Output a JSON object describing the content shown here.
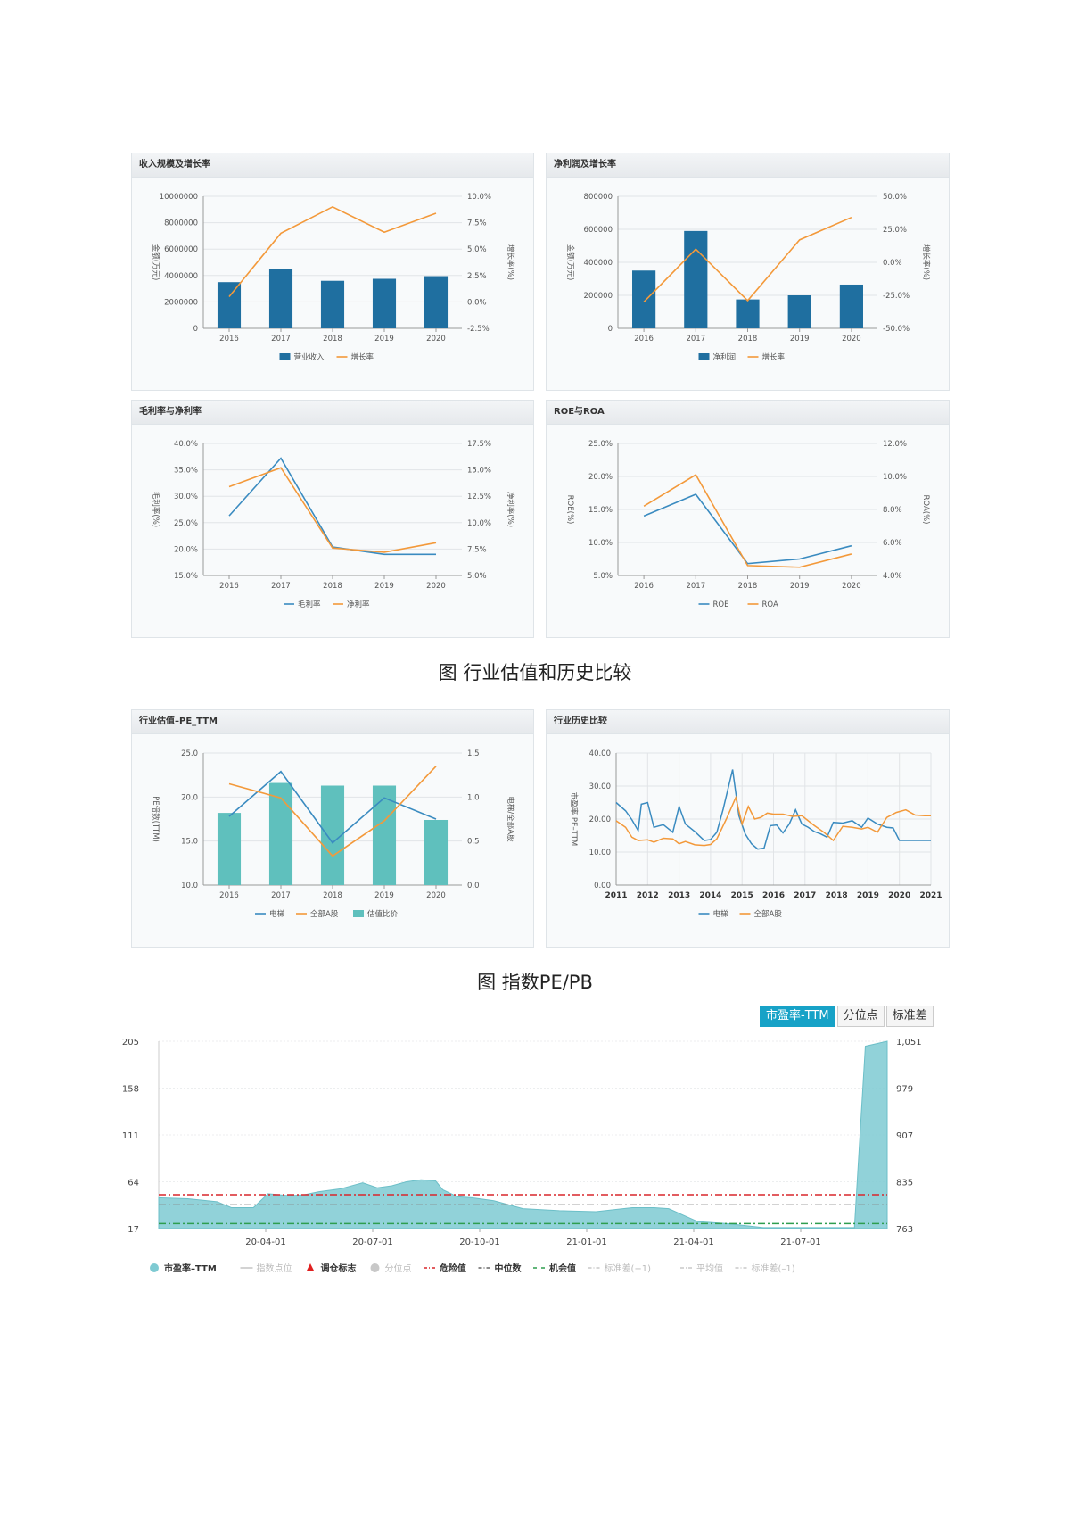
{
  "captions": {
    "industry_valuation": "图 行业估值和历史比较",
    "index_pe_pb": "图 指数PE/PB"
  },
  "pe_tabs": [
    "市盈率-TTM",
    "分位点",
    "标准差"
  ],
  "colors": {
    "bar": "#1f6fa0",
    "line_orange": "#f3993a",
    "line_blue": "#3a8bc0",
    "teal_bar": "#5fc0bd",
    "area": "#7ecad2"
  },
  "chart_data": [
    {
      "id": "revenue",
      "type": "bar+line",
      "title": "收入规模及增长率",
      "categories": [
        "2016",
        "2017",
        "2018",
        "2019",
        "2020"
      ],
      "left_axis": {
        "label": "金额(万元)",
        "ticks": [
          "10000000",
          "8000000",
          "6000000",
          "4000000",
          "2000000",
          "0"
        ],
        "min": 0,
        "max": 10000000
      },
      "right_axis": {
        "label": "增长率(%)",
        "ticks": [
          "10.0%",
          "7.5%",
          "5.0%",
          "2.5%",
          "0.0%",
          "-2.5%"
        ],
        "min": -2.5,
        "max": 10
      },
      "series": [
        {
          "name": "营业收入",
          "kind": "bar",
          "axis": "left",
          "values": [
            3500000,
            4500000,
            3600000,
            3750000,
            3950000
          ]
        },
        {
          "name": "增长率",
          "kind": "line",
          "axis": "right",
          "color": "orange",
          "values": [
            0.5,
            6.5,
            9.0,
            6.6,
            8.4
          ]
        }
      ]
    },
    {
      "id": "net_profit",
      "type": "bar+line",
      "title": "净利润及增长率",
      "categories": [
        "2016",
        "2017",
        "2018",
        "2019",
        "2020"
      ],
      "left_axis": {
        "label": "金额(万元)",
        "ticks": [
          "800000",
          "600000",
          "400000",
          "200000",
          "0"
        ],
        "min": 0,
        "max": 800000
      },
      "right_axis": {
        "label": "增长率(%)",
        "ticks": [
          "50.0%",
          "25.0%",
          "0.0%",
          "-25.0%",
          "-50.0%"
        ],
        "min": -50,
        "max": 50
      },
      "series": [
        {
          "name": "净利润",
          "kind": "bar",
          "axis": "left",
          "values": [
            350000,
            590000,
            175000,
            200000,
            265000
          ]
        },
        {
          "name": "增长率",
          "kind": "line",
          "axis": "right",
          "color": "orange",
          "values": [
            -30,
            10,
            -29,
            17,
            34
          ]
        }
      ]
    },
    {
      "id": "margin",
      "type": "line",
      "title": "毛利率与净利率",
      "categories": [
        "2016",
        "2017",
        "2018",
        "2019",
        "2020"
      ],
      "left_axis": {
        "label": "毛利率(%)",
        "ticks": [
          "40.0%",
          "35.0%",
          "30.0%",
          "25.0%",
          "20.0%",
          "15.0%"
        ],
        "min": 15,
        "max": 40
      },
      "right_axis": {
        "label": "净利率(%)",
        "ticks": [
          "17.5%",
          "15.0%",
          "12.5%",
          "10.0%",
          "7.5%",
          "5.0%"
        ],
        "min": 5,
        "max": 17.5
      },
      "series": [
        {
          "name": "毛利率",
          "kind": "line",
          "axis": "left",
          "color": "blue",
          "values": [
            26.3,
            37.2,
            20.4,
            19.0,
            19.0
          ]
        },
        {
          "name": "净利率",
          "kind": "line",
          "axis": "right",
          "color": "orange",
          "values": [
            13.4,
            15.2,
            7.6,
            7.2,
            8.1
          ]
        }
      ]
    },
    {
      "id": "roe_roa",
      "type": "line",
      "title": "ROE与ROA",
      "categories": [
        "2016",
        "2017",
        "2018",
        "2019",
        "2020"
      ],
      "left_axis": {
        "label": "ROE(%)",
        "ticks": [
          "25.0%",
          "20.0%",
          "15.0%",
          "10.0%",
          "5.0%"
        ],
        "min": 5,
        "max": 25
      },
      "right_axis": {
        "label": "ROA(%)",
        "ticks": [
          "12.0%",
          "10.0%",
          "8.0%",
          "6.0%",
          "4.0%"
        ],
        "min": 4,
        "max": 12
      },
      "series": [
        {
          "name": "ROE",
          "kind": "line",
          "axis": "left",
          "color": "blue",
          "values": [
            14,
            17.3,
            6.8,
            7.5,
            9.5
          ]
        },
        {
          "name": "ROA",
          "kind": "line",
          "axis": "right",
          "color": "orange",
          "values": [
            8.2,
            10.1,
            4.6,
            4.5,
            5.3
          ]
        }
      ]
    },
    {
      "id": "industry_pe",
      "type": "bar+line",
      "title": "行业估值–PE_TTM",
      "categories": [
        "2016",
        "2017",
        "2018",
        "2019",
        "2020"
      ],
      "left_axis": {
        "label": "PE倍数(TTM)",
        "ticks": [
          "25.0",
          "20.0",
          "15.0",
          "10.0"
        ],
        "min": 10,
        "max": 25
      },
      "right_axis": {
        "label": "电梯/全部A股",
        "ticks": [
          "1.5",
          "1.0",
          "0.5",
          "0.0"
        ],
        "min": 0,
        "max": 1.5
      },
      "series": [
        {
          "name": "电梯",
          "kind": "line",
          "axis": "left",
          "color": "blue",
          "values": [
            17.8,
            22.9,
            14.8,
            19.9,
            17.5
          ]
        },
        {
          "name": "全部A股",
          "kind": "line",
          "axis": "left",
          "color": "orange",
          "values": [
            21.5,
            19.9,
            13.3,
            17.3,
            23.5
          ]
        },
        {
          "name": "估值比价",
          "kind": "bar",
          "axis": "right",
          "color": "teal",
          "values": [
            0.82,
            1.16,
            1.13,
            1.13,
            0.74
          ]
        }
      ]
    },
    {
      "id": "industry_history",
      "type": "line",
      "title": "行业历史比较",
      "x_ticks": [
        "2011",
        "2012",
        "2013",
        "2014",
        "2015",
        "2016",
        "2017",
        "2018",
        "2019",
        "2020",
        "2021"
      ],
      "x_range": [
        2011,
        2021
      ],
      "left_axis": {
        "label": "市盈率 PE–TTM",
        "ticks": [
          "40.00",
          "30.00",
          "20.00",
          "10.00",
          "0.00"
        ],
        "min": 0,
        "max": 40
      },
      "series": [
        {
          "name": "电梯",
          "kind": "line",
          "color": "blue",
          "x": [
            2011.0,
            2011.3,
            2011.5,
            2011.7,
            2011.8,
            2012.0,
            2012.2,
            2012.5,
            2012.8,
            2013.0,
            2013.2,
            2013.5,
            2013.8,
            2014.0,
            2014.2,
            2014.4,
            2014.7,
            2014.9,
            2015.1,
            2015.3,
            2015.5,
            2015.7,
            2015.9,
            2016.1,
            2016.3,
            2016.5,
            2016.7,
            2016.9,
            2017.1,
            2017.3,
            2017.5,
            2017.7,
            2017.9,
            2018.2,
            2018.5,
            2018.8,
            2019.0,
            2019.3,
            2019.6,
            2019.8,
            2020.0,
            2020.2,
            2020.4,
            2020.6,
            2020.8,
            2021.0
          ],
          "y": [
            25.0,
            22.5,
            19.8,
            16.5,
            24.5,
            25.0,
            17.5,
            18.3,
            16.0,
            23.8,
            18.5,
            16.2,
            13.5,
            13.8,
            16.0,
            23.0,
            35.0,
            21.0,
            15.5,
            12.5,
            10.9,
            11.2,
            18.0,
            18.2,
            15.8,
            18.5,
            22.8,
            18.5,
            17.5,
            16.2,
            15.5,
            14.5,
            19.0,
            18.8,
            19.5,
            17.5,
            20.3,
            18.5,
            17.5,
            17.3,
            13.5,
            13.5,
            13.5,
            13.5,
            13.5,
            13.5
          ]
        },
        {
          "name": "全部A股",
          "kind": "line",
          "color": "orange",
          "x": [
            2011.0,
            2011.3,
            2011.5,
            2011.7,
            2012.0,
            2012.2,
            2012.5,
            2012.8,
            2013.0,
            2013.2,
            2013.5,
            2013.8,
            2014.0,
            2014.2,
            2014.5,
            2014.8,
            2015.0,
            2015.2,
            2015.4,
            2015.6,
            2015.8,
            2016.0,
            2016.3,
            2016.6,
            2016.9,
            2017.1,
            2017.3,
            2017.6,
            2017.9,
            2018.2,
            2018.5,
            2018.8,
            2019.0,
            2019.3,
            2019.6,
            2019.9,
            2020.2,
            2020.5,
            2020.8,
            2021.0
          ],
          "y": [
            19.5,
            17.5,
            14.5,
            13.5,
            13.7,
            13.0,
            14.2,
            14.0,
            12.5,
            13.2,
            12.2,
            12.0,
            12.3,
            14.0,
            20.0,
            26.5,
            18.5,
            23.8,
            20.0,
            20.5,
            21.8,
            21.5,
            21.5,
            20.8,
            21.0,
            19.5,
            18.0,
            16.0,
            13.5,
            17.8,
            17.5,
            17.0,
            17.5,
            16.0,
            20.5,
            22.0,
            22.8,
            21.2,
            21.0,
            21.0
          ]
        }
      ]
    },
    {
      "id": "index_pe",
      "type": "area",
      "x_ticks": [
        "20-04-01",
        "20-07-01",
        "20-10-01",
        "21-01-01",
        "21-04-01",
        "21-07-01"
      ],
      "left_axis": {
        "ticks": [
          "205",
          "158",
          "111",
          "64",
          "17"
        ],
        "min": 17,
        "max": 205
      },
      "right_axis": {
        "ticks": [
          "1,051",
          "979",
          "907",
          "835",
          "763"
        ],
        "min": 763,
        "max": 1051
      },
      "reference_lines": {
        "danger": 51,
        "median": 41,
        "opportunity": 22
      },
      "series": [
        {
          "name": "市盈率–TTM",
          "kind": "area",
          "t": [
            0.0,
            0.04,
            0.08,
            0.1,
            0.13,
            0.15,
            0.18,
            0.2,
            0.22,
            0.25,
            0.28,
            0.3,
            0.32,
            0.34,
            0.36,
            0.38,
            0.39,
            0.41,
            0.43,
            0.46,
            0.5,
            0.55,
            0.6,
            0.65,
            0.68,
            0.7,
            0.74,
            0.78,
            0.83,
            0.88,
            0.91,
            0.94,
            0.955,
            0.97,
            1.0
          ],
          "y": [
            48,
            47,
            44,
            38,
            38,
            52,
            50,
            51,
            54,
            57,
            63,
            58,
            60,
            64,
            66,
            65,
            56,
            49,
            48,
            45,
            37,
            35,
            34,
            38,
            38,
            37,
            24,
            22,
            18,
            18,
            18,
            18,
            18,
            200,
            205
          ]
        }
      ],
      "legend": [
        {
          "label": "市盈率–TTM",
          "marker": "dot",
          "color": "#7ecad2"
        },
        {
          "label": "指数点位",
          "marker": "dash",
          "color": "#c8c8c8"
        },
        {
          "label": "调仓标志",
          "marker": "triangle",
          "color": "#e02020"
        },
        {
          "label": "分位点",
          "marker": "dot",
          "color": "#c8c8c8"
        },
        {
          "label": "危险值",
          "marker": "dashdot",
          "color": "#d9262c"
        },
        {
          "label": "中位数",
          "marker": "dashdot",
          "color": "#666666"
        },
        {
          "label": "机会值",
          "marker": "dashdot",
          "color": "#2e9e4f"
        },
        {
          "label": "标准差(+1)",
          "marker": "dashdot",
          "color": "#c8c8c8"
        },
        {
          "label": "平均值",
          "marker": "dashdot",
          "color": "#c8c8c8"
        },
        {
          "label": "标准差(–1)",
          "marker": "dashdot",
          "color": "#c8c8c8"
        }
      ]
    }
  ]
}
